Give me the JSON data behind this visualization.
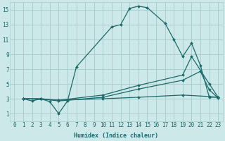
{
  "xlabel": "Humidex (Indice chaleur)",
  "bg_color": "#cce8e8",
  "grid_color": "#aacfcf",
  "line_color": "#1a6b6b",
  "xlim": [
    -0.5,
    23.5
  ],
  "ylim": [
    0,
    16
  ],
  "xticks": [
    0,
    1,
    2,
    3,
    4,
    5,
    6,
    7,
    8,
    9,
    10,
    11,
    12,
    13,
    14,
    15,
    16,
    17,
    18,
    19,
    20,
    21,
    22,
    23
  ],
  "yticks": [
    1,
    3,
    5,
    7,
    9,
    11,
    13,
    15
  ],
  "series": [
    {
      "x": [
        1,
        2,
        3,
        4,
        5,
        6,
        7,
        11,
        12,
        13,
        14,
        15,
        17,
        18,
        19,
        20,
        21,
        22,
        23
      ],
      "y": [
        3,
        2.7,
        3,
        2.6,
        1.0,
        2.7,
        7.3,
        12.7,
        13.0,
        15.2,
        15.5,
        15.3,
        13.2,
        11.0,
        8.7,
        10.5,
        7.5,
        3.2,
        3.2
      ]
    },
    {
      "x": [
        1,
        3,
        5,
        10,
        14,
        19,
        20,
        22,
        23
      ],
      "y": [
        3,
        3,
        2.8,
        3.5,
        4.8,
        6.2,
        8.7,
        5.0,
        3.2
      ]
    },
    {
      "x": [
        1,
        3,
        5,
        10,
        14,
        19,
        21,
        22,
        23
      ],
      "y": [
        3,
        3,
        2.7,
        3.2,
        4.3,
        5.5,
        6.7,
        4.2,
        3.1
      ]
    },
    {
      "x": [
        1,
        5,
        10,
        14,
        19,
        22,
        23
      ],
      "y": [
        3,
        2.8,
        3.0,
        3.2,
        3.5,
        3.3,
        3.2
      ]
    }
  ]
}
